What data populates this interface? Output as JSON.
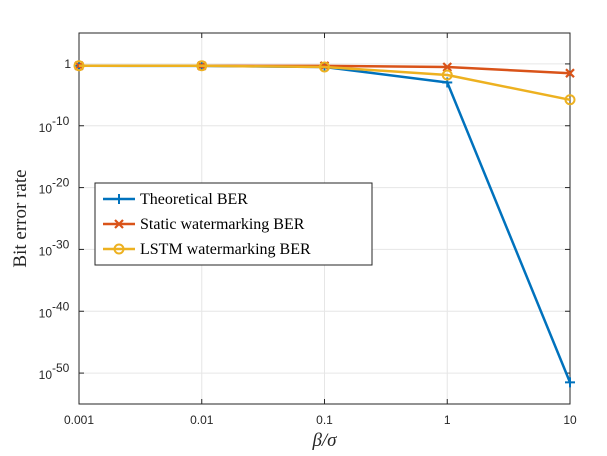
{
  "chart_data": {
    "type": "line",
    "xlabel": "β/σ",
    "ylabel": "Bit error rate",
    "x_scale": "log",
    "y_scale": "log",
    "x": [
      0.001,
      0.01,
      0.1,
      1,
      10
    ],
    "x_tick_labels": [
      "0.001",
      "0.01",
      "0.1",
      "1",
      "10"
    ],
    "xlim": [
      0.001,
      10
    ],
    "y_exponent_range": [
      -55,
      5
    ],
    "y_tick_exponents": [
      0,
      -10,
      -20,
      -30,
      -40,
      -50
    ],
    "y_tick_labels": [
      "1",
      "10",
      "10",
      "10",
      "10",
      "10"
    ],
    "y_tick_superscripts": [
      "",
      "-10",
      "-20",
      "-30",
      "-40",
      "-50"
    ],
    "grid": true,
    "legend_position": "center-left",
    "series": [
      {
        "name": "Theoretical BER",
        "color": "#0072BD",
        "marker": "plus",
        "y_exponents": [
          -0.3,
          -0.32,
          -0.5,
          -3,
          -51.5
        ]
      },
      {
        "name": "Static watermarking BER",
        "color": "#D95319",
        "marker": "x",
        "y_exponents": [
          -0.3,
          -0.31,
          -0.32,
          -0.5,
          -1.5
        ]
      },
      {
        "name": "LSTM watermarking BER",
        "color": "#EDB120",
        "marker": "circle",
        "y_exponents": [
          -0.3,
          -0.3,
          -0.5,
          -1.8,
          -5.8
        ]
      }
    ]
  }
}
